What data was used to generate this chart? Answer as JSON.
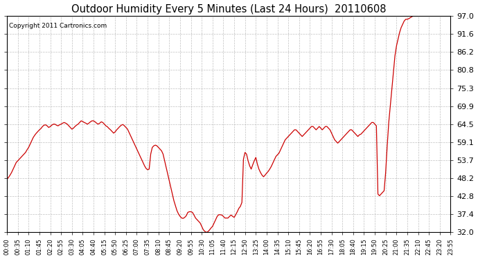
{
  "title": "Outdoor Humidity Every 5 Minutes (Last 24 Hours)  20110608",
  "copyright_text": "Copyright 2011 Cartronics.com",
  "line_color": "#cc0000",
  "background_color": "#ffffff",
  "plot_bg_color": "#ffffff",
  "grid_color": "#b0b0b0",
  "ylim": [
    32.0,
    97.0
  ],
  "yticks": [
    32.0,
    37.4,
    42.8,
    48.2,
    53.7,
    59.1,
    64.5,
    69.9,
    75.3,
    80.8,
    86.2,
    91.6,
    97.0
  ],
  "x_label_every": 7,
  "humidity_data": [
    48.0,
    48.5,
    49.2,
    50.0,
    51.0,
    52.0,
    53.0,
    53.5,
    54.0,
    54.5,
    55.0,
    55.5,
    56.0,
    56.8,
    57.5,
    58.5,
    59.5,
    60.5,
    61.2,
    61.8,
    62.3,
    62.8,
    63.2,
    63.8,
    64.2,
    64.3,
    64.0,
    63.5,
    63.8,
    64.2,
    64.5,
    64.5,
    64.2,
    64.0,
    64.3,
    64.5,
    64.8,
    65.0,
    64.8,
    64.5,
    64.0,
    63.5,
    63.0,
    63.3,
    63.8,
    64.2,
    64.5,
    65.0,
    65.5,
    65.3,
    65.0,
    64.8,
    64.5,
    64.8,
    65.2,
    65.5,
    65.5,
    65.2,
    64.8,
    64.5,
    64.8,
    65.2,
    65.0,
    64.5,
    64.0,
    63.7,
    63.2,
    62.8,
    62.3,
    61.8,
    62.2,
    62.8,
    63.3,
    63.8,
    64.2,
    64.4,
    64.0,
    63.5,
    63.0,
    62.0,
    61.0,
    60.0,
    59.0,
    58.0,
    57.0,
    56.0,
    55.0,
    54.0,
    53.0,
    52.0,
    51.2,
    50.8,
    51.0,
    55.5,
    57.5,
    58.0,
    58.2,
    58.0,
    57.5,
    57.0,
    56.5,
    55.5,
    53.5,
    51.5,
    49.5,
    47.5,
    45.5,
    43.5,
    41.5,
    40.0,
    38.5,
    37.5,
    36.8,
    36.3,
    36.2,
    36.5,
    37.0,
    38.0,
    38.2,
    38.2,
    38.0,
    37.2,
    36.3,
    35.8,
    35.3,
    34.8,
    33.8,
    32.8,
    32.3,
    32.0,
    32.2,
    32.7,
    33.3,
    33.8,
    34.8,
    35.8,
    36.8,
    37.3,
    37.3,
    37.2,
    36.8,
    36.3,
    36.3,
    36.3,
    36.8,
    37.2,
    36.8,
    36.5,
    37.3,
    38.2,
    39.2,
    39.8,
    41.0,
    54.0,
    56.0,
    55.5,
    53.5,
    52.0,
    51.0,
    52.3,
    53.5,
    54.5,
    52.5,
    51.0,
    50.0,
    49.2,
    48.7,
    49.2,
    49.8,
    50.3,
    51.0,
    51.8,
    52.8,
    53.8,
    54.8,
    55.3,
    55.8,
    56.8,
    57.8,
    58.8,
    59.8,
    60.3,
    60.8,
    61.3,
    61.8,
    62.3,
    62.8,
    62.8,
    62.3,
    61.8,
    61.3,
    60.8,
    61.3,
    61.8,
    62.3,
    62.8,
    63.3,
    63.8,
    63.8,
    63.3,
    62.8,
    63.3,
    63.8,
    63.3,
    62.8,
    63.3,
    63.8,
    63.8,
    63.3,
    62.8,
    61.8,
    60.8,
    59.8,
    59.3,
    58.8,
    59.3,
    59.8,
    60.3,
    60.8,
    61.3,
    61.8,
    62.3,
    62.8,
    62.8,
    62.3,
    61.8,
    61.3,
    60.8,
    61.3,
    61.5,
    62.0,
    62.5,
    63.0,
    63.5,
    64.0,
    64.5,
    65.0,
    65.0,
    64.5,
    64.0,
    43.5,
    43.0,
    43.5,
    44.0,
    44.5,
    50.0,
    58.0,
    65.0,
    70.0,
    75.0,
    80.0,
    85.0,
    88.0,
    90.0,
    92.0,
    93.5,
    94.5,
    95.5,
    96.0,
    96.0,
    96.2,
    96.5,
    96.8,
    97.0,
    97.0,
    97.0,
    97.0,
    97.0,
    97.0,
    97.0,
    97.0,
    97.0,
    97.0,
    97.0,
    97.0,
    97.0,
    97.0,
    97.0,
    97.0,
    97.0,
    97.0,
    97.0,
    97.0,
    97.0,
    97.0,
    97.0,
    97.0,
    97.0
  ]
}
